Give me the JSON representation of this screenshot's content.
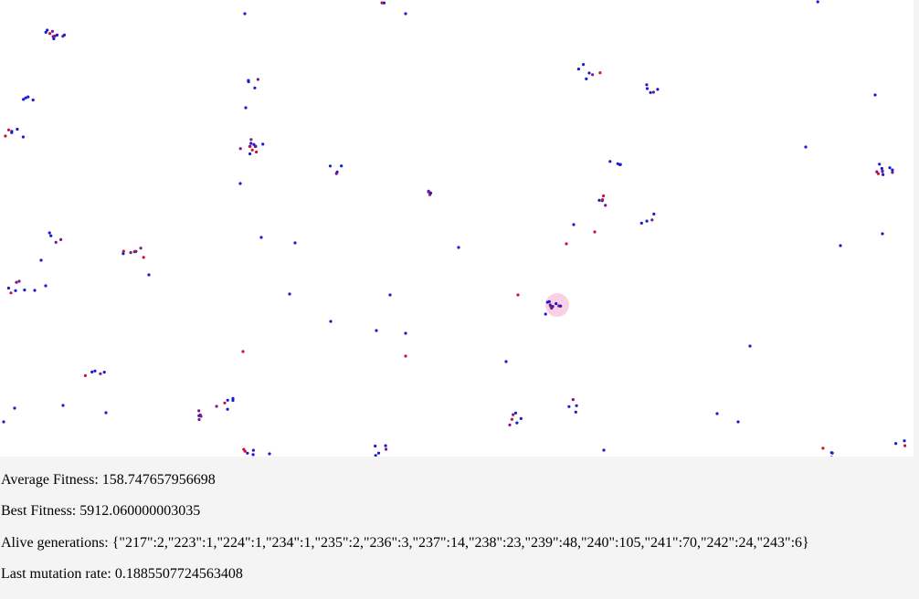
{
  "stats": {
    "average_fitness": "Average Fitness: 158.747657956698",
    "best_fitness": "Best Fitness: 5912.060000003035",
    "alive_generations": "Alive generations: {\"217\":2,\"223\":1,\"224\":1,\"234\":1,\"235\":2,\"236\":3,\"237\":14,\"238\":23,\"239\":48,\"240\":105,\"241\":70,\"242\":24,\"243\":6}",
    "last_mutation_rate": "Last mutation rate: 0.1885507724563408"
  },
  "colors": {
    "canvas_bg": "#ffffff",
    "page_bg": "#f4f4f4",
    "creature_blue": "#1a1ad6",
    "creature_red": "#cc1133",
    "creature_purple": "#7a1a8a",
    "selection_highlight": "#f7c6dc"
  }
}
